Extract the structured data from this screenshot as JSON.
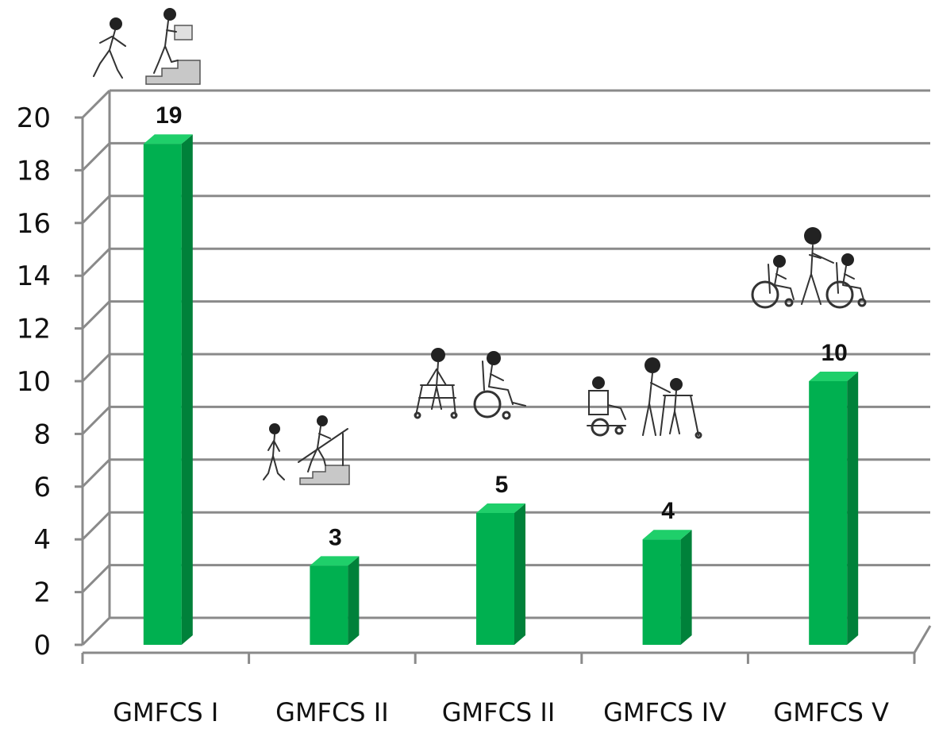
{
  "chart_data": {
    "type": "bar",
    "categories": [
      "GMFCS I",
      "GMFCS II",
      "GMFCS II",
      "GMFCS IV",
      "GMFCS V"
    ],
    "values": [
      19,
      3,
      5,
      4,
      10
    ],
    "ylim": [
      0,
      20
    ],
    "yticks": [
      0,
      2,
      4,
      6,
      8,
      10,
      12,
      14,
      16,
      18,
      20
    ],
    "grid": true,
    "style": "3d-column",
    "colors": {
      "bar_front": "#00b050",
      "bar_side": "#00813a",
      "bar_top": "#1fcf6a",
      "grid": "#8a8a8a"
    },
    "illustrations": [
      {
        "category": "GMFCS I",
        "icon": "child-running-and-carrying-box-up-stairs-icon"
      },
      {
        "category": "GMFCS II",
        "icon": "child-walking-and-climbing-stairs-with-rail-icon"
      },
      {
        "category": "GMFCS II",
        "icon": "child-with-walker-and-child-in-wheelchair-icon"
      },
      {
        "category": "GMFCS IV",
        "icon": "child-in-power-wheelchair-and-assisted-walker-icon"
      },
      {
        "category": "GMFCS V",
        "icon": "children-in-pushed-wheelchairs-icon"
      }
    ]
  }
}
